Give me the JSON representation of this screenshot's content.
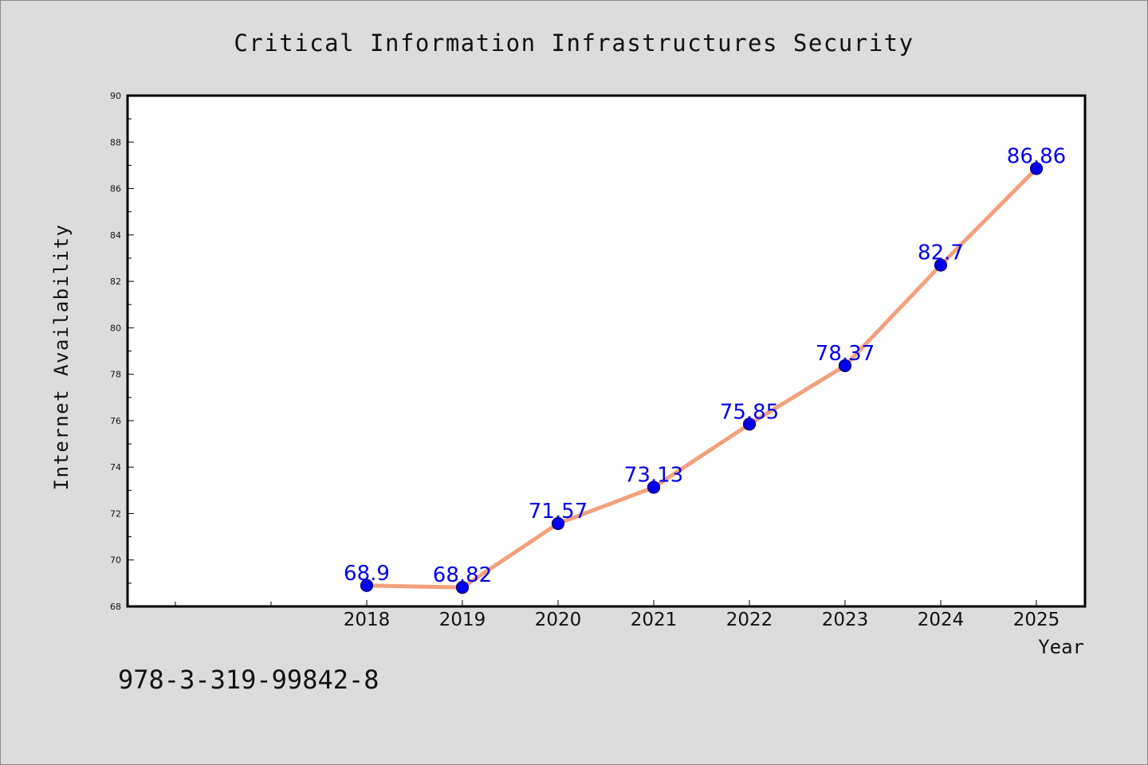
{
  "chart_data": {
    "type": "line",
    "title": "Critical Information Infrastructures Security",
    "xlabel": "Year",
    "ylabel": "Internet Availability",
    "categories": [
      "2018",
      "2019",
      "2020",
      "2021",
      "2022",
      "2023",
      "2024",
      "2025"
    ],
    "series": [
      {
        "values": [
          68.9,
          68.82,
          71.57,
          73.13,
          75.85,
          78.37,
          82.7,
          86.86
        ],
        "data_labels": [
          "68.9",
          "68.82",
          "71.57",
          "73.13",
          "75.85",
          "78.37",
          "82.7",
          "86.86"
        ],
        "line_color": "#f4a07c",
        "marker_color": "#0000ee",
        "label_color": "#0000ee"
      }
    ],
    "ylim": [
      68,
      90
    ],
    "yticks": [
      "68",
      "70",
      "72",
      "74",
      "76",
      "78",
      "80",
      "82",
      "84",
      "86",
      "88",
      "90"
    ],
    "grid": false
  },
  "footer_text": "978-3-319-99842-8",
  "colors": {
    "background": "#dcdcdc",
    "plot_area": "#ffffff",
    "axis": "#000000"
  }
}
